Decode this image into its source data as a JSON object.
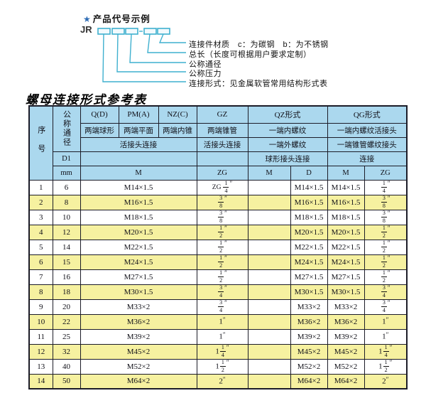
{
  "diagram": {
    "title": "产品代号示例",
    "star": "★",
    "prefix": "JR",
    "labels": [
      "连接件材质　c：为碳钢　b：为不锈钢",
      "总长（长度可根据用户要求定制）",
      "公称通径",
      "公称压力",
      "连接形式：见金属软管常用结构形式表"
    ],
    "colors": {
      "line": "#3fb0cf",
      "star": "#2e6cb5"
    }
  },
  "table": {
    "title": "螺母连接形式参考表",
    "colors": {
      "header_bg": "#abd8ee",
      "alt_row": "#f6f1a0",
      "border": "#1c1c28"
    },
    "header": {
      "seq": "序号",
      "dn": "公称通径",
      "d1": "D1",
      "mm": "mm",
      "union": "活接头连接",
      "unit_m": "M",
      "q": {
        "code": "Q(D)",
        "desc": "两端球形"
      },
      "pm": {
        "code": "PM(A)",
        "desc": "两端平面"
      },
      "nz": {
        "code": "NZ(C)",
        "desc": "两端内锥"
      },
      "gz": {
        "code": "GZ",
        "desc": "两端锥管",
        "union": "活接头连接",
        "unit": "ZG"
      },
      "qz": {
        "code": "QZ形式",
        "inner": "一端内螺纹",
        "outer": "一端外螺纹",
        "conn": "球形接头连接",
        "unit_m": "M",
        "unit_d": "D"
      },
      "qg": {
        "code": "QG形式",
        "inner": "一端内螺纹活接头",
        "outer": "一端锥管螺纹接头",
        "conn": "连接",
        "unit_m": "M",
        "unit_zg": "ZG"
      }
    },
    "rows": [
      {
        "seq": "1",
        "dn": "6",
        "m": "M14×1.5",
        "gz": {
          "p": "ZG",
          "n": "1",
          "d": "4"
        },
        "qz_m": "",
        "qz_d": "M14×1.5",
        "qg_m": "M14×1.5",
        "qg": {
          "n": "1",
          "d": "4"
        }
      },
      {
        "seq": "2",
        "dn": "8",
        "m": "M16×1.5",
        "gz": {
          "n": "3",
          "d": "8"
        },
        "qz_m": "",
        "qz_d": "M16×1.5",
        "qg_m": "M16×1.5",
        "qg": {
          "n": "3",
          "d": "8"
        }
      },
      {
        "seq": "3",
        "dn": "10",
        "m": "M18×1.5",
        "gz": {
          "n": "3",
          "d": "8"
        },
        "qz_m": "",
        "qz_d": "M18×1.5",
        "qg_m": "M18×1.5",
        "qg": {
          "n": "3",
          "d": "8"
        }
      },
      {
        "seq": "4",
        "dn": "12",
        "m": "M20×1.5",
        "gz": {
          "n": "1",
          "d": "2"
        },
        "qz_m": "",
        "qz_d": "M20×1.5",
        "qg_m": "M20×1.5",
        "qg": {
          "n": "1",
          "d": "2"
        }
      },
      {
        "seq": "5",
        "dn": "14",
        "m": "M22×1.5",
        "gz": {
          "n": "1",
          "d": "2"
        },
        "qz_m": "",
        "qz_d": "M22×1.5",
        "qg_m": "M22×1.5",
        "qg": {
          "n": "1",
          "d": "2"
        }
      },
      {
        "seq": "6",
        "dn": "15",
        "m": "M24×1.5",
        "gz": {
          "n": "1",
          "d": "2"
        },
        "qz_m": "",
        "qz_d": "M24×1.5",
        "qg_m": "M24×1.5",
        "qg": {
          "n": "1",
          "d": "2"
        }
      },
      {
        "seq": "7",
        "dn": "16",
        "m": "M27×1.5",
        "gz": {
          "n": "1",
          "d": "2"
        },
        "qz_m": "",
        "qz_d": "M27×1.5",
        "qg_m": "M27×1.5",
        "qg": {
          "n": "1",
          "d": "2"
        }
      },
      {
        "seq": "8",
        "dn": "18",
        "m": "M30×1.5",
        "gz": {
          "n": "3",
          "d": "4"
        },
        "qz_m": "",
        "qz_d": "M30×1.5",
        "qg_m": "M30×1.5",
        "qg": {
          "n": "3",
          "d": "4"
        }
      },
      {
        "seq": "9",
        "dn": "20",
        "m": "M33×2",
        "gz": {
          "n": "3",
          "d": "4"
        },
        "qz_m": "",
        "qz_d": "M33×2",
        "qg_m": "M33×2",
        "qg": {
          "n": "3",
          "d": "4"
        }
      },
      {
        "seq": "10",
        "dn": "22",
        "m": "M36×2",
        "gz": {
          "w": "1"
        },
        "qz_m": "",
        "qz_d": "M36×2",
        "qg_m": "M36×2",
        "qg": {
          "w": "1"
        }
      },
      {
        "seq": "11",
        "dn": "25",
        "m": "M39×2",
        "gz": {
          "w": "1"
        },
        "qz_m": "",
        "qz_d": "M39×2",
        "qg_m": "M39×2",
        "qg": {
          "w": "1"
        }
      },
      {
        "seq": "12",
        "dn": "32",
        "m": "M45×2",
        "gz": {
          "w": "1",
          "n": "1",
          "d": "4"
        },
        "qz_m": "",
        "qz_d": "M45×2",
        "qg_m": "M45×2",
        "qg": {
          "w": "1",
          "n": "1",
          "d": "4"
        }
      },
      {
        "seq": "13",
        "dn": "40",
        "m": "M52×2",
        "gz": {
          "w": "1",
          "n": "1",
          "d": "2"
        },
        "qz_m": "",
        "qz_d": "M52×2",
        "qg_m": "M52×2",
        "qg": {
          "w": "1",
          "n": "1",
          "d": "2"
        }
      },
      {
        "seq": "14",
        "dn": "50",
        "m": "M64×2",
        "gz": {
          "w": "2"
        },
        "qz_m": "",
        "qz_d": "M64×2",
        "qg_m": "M64×2",
        "qg": {
          "w": "2"
        }
      }
    ]
  }
}
